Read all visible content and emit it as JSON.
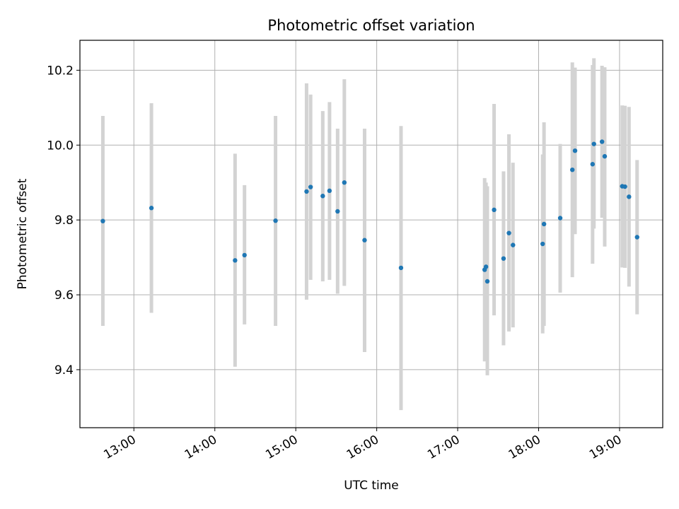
{
  "chart_data": {
    "type": "scatter",
    "title": "Photometric offset variation",
    "xlabel": "UTC time",
    "ylabel": "Photometric offset",
    "xlim": [
      "12:20",
      "19:32"
    ],
    "ylim": [
      9.245,
      10.28
    ],
    "grid": true,
    "x_ticks": [
      "13:00",
      "14:00",
      "15:00",
      "16:00",
      "17:00",
      "18:00",
      "19:00"
    ],
    "y_ticks": [
      9.4,
      9.6,
      9.8,
      10.0,
      10.2
    ],
    "y_tick_labels": [
      "9.4",
      "9.6",
      "9.8",
      "10.0",
      "10.2"
    ],
    "colors": {
      "point": "#1f77b4",
      "errorbar": "#d3d3d3",
      "grid": "#b0b0b0"
    },
    "points": [
      {
        "t": "12:37",
        "y": 9.797,
        "low": 9.517,
        "high": 10.078
      },
      {
        "t": "13:13",
        "y": 9.832,
        "low": 9.552,
        "high": 10.112
      },
      {
        "t": "14:15",
        "y": 9.692,
        "low": 9.408,
        "high": 9.977
      },
      {
        "t": "14:22",
        "y": 9.706,
        "low": 9.521,
        "high": 9.893
      },
      {
        "t": "14:45",
        "y": 9.798,
        "low": 9.517,
        "high": 10.078
      },
      {
        "t": "15:08",
        "y": 9.876,
        "low": 9.587,
        "high": 10.165
      },
      {
        "t": "15:11",
        "y": 9.888,
        "low": 9.64,
        "high": 10.135
      },
      {
        "t": "15:20",
        "y": 9.864,
        "low": 9.636,
        "high": 10.091
      },
      {
        "t": "15:25",
        "y": 9.878,
        "low": 9.64,
        "high": 10.115
      },
      {
        "t": "15:31",
        "y": 9.823,
        "low": 9.603,
        "high": 10.044
      },
      {
        "t": "15:36",
        "y": 9.9,
        "low": 9.624,
        "high": 10.176
      },
      {
        "t": "15:51",
        "y": 9.746,
        "low": 9.447,
        "high": 10.044
      },
      {
        "t": "16:18",
        "y": 9.672,
        "low": 9.292,
        "high": 10.051
      },
      {
        "t": "17:20",
        "y": 9.667,
        "low": 9.422,
        "high": 9.912
      },
      {
        "t": "17:21",
        "y": 9.675,
        "low": 9.45,
        "high": 9.9
      },
      {
        "t": "17:22",
        "y": 9.636,
        "low": 9.385,
        "high": 9.89
      },
      {
        "t": "17:27",
        "y": 9.827,
        "low": 9.545,
        "high": 10.11
      },
      {
        "t": "17:34",
        "y": 9.697,
        "low": 9.465,
        "high": 9.93
      },
      {
        "t": "17:38",
        "y": 9.765,
        "low": 9.502,
        "high": 10.029
      },
      {
        "t": "17:41",
        "y": 9.733,
        "low": 9.513,
        "high": 9.953
      },
      {
        "t": "18:03",
        "y": 9.736,
        "low": 9.497,
        "high": 9.975
      },
      {
        "t": "18:04",
        "y": 9.789,
        "low": 9.517,
        "high": 10.061
      },
      {
        "t": "18:16",
        "y": 9.805,
        "low": 9.606,
        "high": 10.003
      },
      {
        "t": "18:25",
        "y": 9.934,
        "low": 9.647,
        "high": 10.221
      },
      {
        "t": "18:27",
        "y": 9.985,
        "low": 9.762,
        "high": 10.207
      },
      {
        "t": "18:40",
        "y": 9.949,
        "low": 9.683,
        "high": 10.214
      },
      {
        "t": "18:41",
        "y": 10.003,
        "low": 9.777,
        "high": 10.232
      },
      {
        "t": "18:47",
        "y": 10.009,
        "low": 9.806,
        "high": 10.212
      },
      {
        "t": "18:49",
        "y": 9.97,
        "low": 9.729,
        "high": 10.208
      },
      {
        "t": "19:02",
        "y": 9.89,
        "low": 9.673,
        "high": 10.106
      },
      {
        "t": "19:04",
        "y": 9.889,
        "low": 9.672,
        "high": 10.105
      },
      {
        "t": "19:07",
        "y": 9.862,
        "low": 9.622,
        "high": 10.102
      },
      {
        "t": "19:13",
        "y": 9.754,
        "low": 9.548,
        "high": 9.96
      }
    ]
  }
}
